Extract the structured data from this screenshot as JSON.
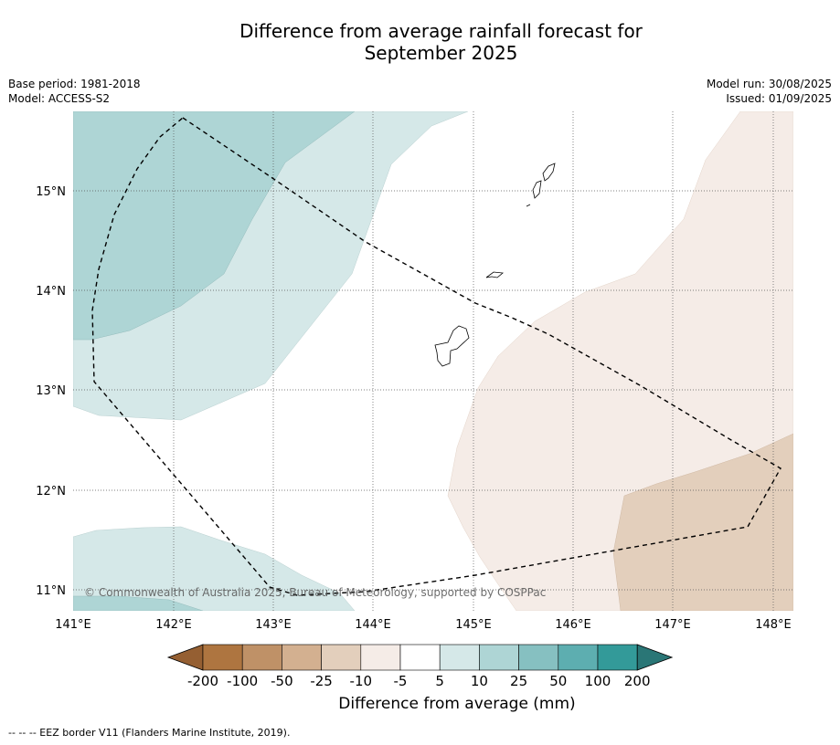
{
  "title": {
    "line1": "Difference from average rainfall forecast for",
    "line2": "September 2025"
  },
  "meta": {
    "base_period": "Base period: 1981-2018",
    "model": "Model: ACCESS-S2",
    "model_run": "Model run: 30/08/2025",
    "issued": "Issued: 01/09/2025"
  },
  "map": {
    "lon_labels": [
      "141°E",
      "142°E",
      "143°E",
      "144°E",
      "145°E",
      "146°E",
      "147°E",
      "148°E"
    ],
    "lat_labels": [
      "11°N",
      "12°N",
      "13°N",
      "14°N",
      "15°N"
    ],
    "lon_range": [
      141,
      148.2
    ],
    "lat_range": [
      10.8,
      15.8
    ],
    "gridlines": true,
    "attribution": "© Commonwealth of Australia 2025, Bureau of Meteorology, supported by COSPPac"
  },
  "colorbar": {
    "title": "Difference from average (mm)",
    "tick_labels": [
      "-200",
      "-100",
      "-50",
      "-25",
      "-10",
      "-5",
      "5",
      "10",
      "25",
      "50",
      "100",
      "200"
    ],
    "colors": [
      "#955f32",
      "#ae7540",
      "#bf9167",
      "#d3b090",
      "#e3cfbc",
      "#f5ece7",
      "#ffffff",
      "#d5e8e8",
      "#aed5d5",
      "#86c0c1",
      "#5daeb0",
      "#339a99",
      "#2a7676"
    ]
  },
  "footnote": "--  --  -- EEZ border V11 (Flanders Marine Institute, 2019)."
}
